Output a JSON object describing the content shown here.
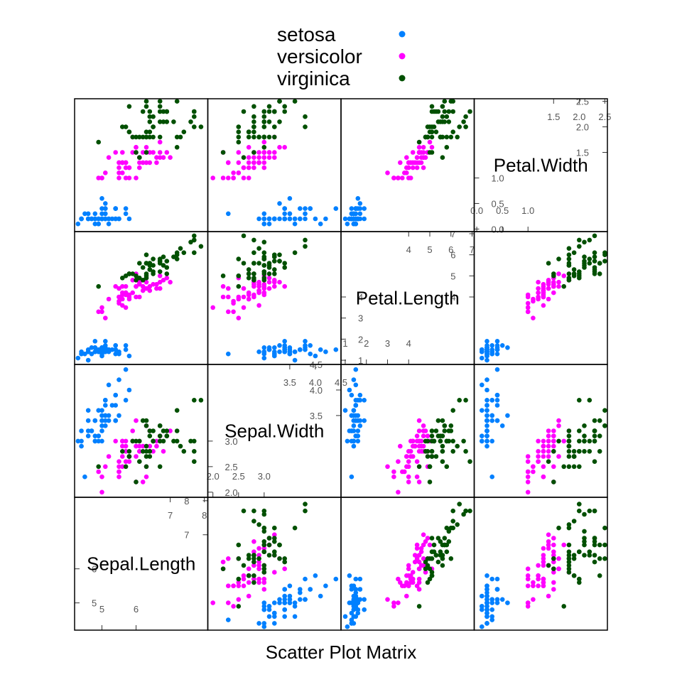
{
  "chart_data": {
    "type": "scatter",
    "subtype": "scatter-plot-matrix",
    "xlabel": "Scatter Plot Matrix",
    "legend_position": "top",
    "variables": [
      "Sepal.Length",
      "Sepal.Width",
      "Petal.Length",
      "Petal.Width"
    ],
    "ranges": {
      "Sepal.Length": [
        4.2,
        8.1
      ],
      "Sepal.Width": [
        1.9,
        4.5
      ],
      "Petal.Length": [
        0.8,
        7.1
      ],
      "Petal.Width": [
        -0.05,
        2.55
      ]
    },
    "ticks": {
      "Sepal.Length": {
        "low": [
          "5",
          "6"
        ],
        "high": [
          "7",
          "8"
        ]
      },
      "Sepal.Width": {
        "low": [
          "2.0",
          "2.5",
          "3.0"
        ],
        "high": [
          "3.5",
          "4.0",
          "4.5"
        ]
      },
      "Petal.Length": {
        "low": [
          "1",
          "2",
          "3",
          "4"
        ],
        "high": [
          "4",
          "5",
          "6",
          "7"
        ]
      },
      "Petal.Width": {
        "low": [
          "0.0",
          "0.5",
          "1.0"
        ],
        "high": [
          "1.5",
          "2.0",
          "2.5"
        ]
      }
    },
    "series": [
      {
        "name": "setosa",
        "color": "#0080ff",
        "points": [
          [
            5.1,
            3.5,
            1.4,
            0.2
          ],
          [
            4.9,
            3.0,
            1.4,
            0.2
          ],
          [
            4.7,
            3.2,
            1.3,
            0.2
          ],
          [
            4.6,
            3.1,
            1.5,
            0.2
          ],
          [
            5.0,
            3.6,
            1.4,
            0.2
          ],
          [
            5.4,
            3.9,
            1.7,
            0.4
          ],
          [
            4.6,
            3.4,
            1.4,
            0.3
          ],
          [
            5.0,
            3.4,
            1.5,
            0.2
          ],
          [
            4.4,
            2.9,
            1.4,
            0.2
          ],
          [
            4.9,
            3.1,
            1.5,
            0.1
          ],
          [
            5.4,
            3.7,
            1.5,
            0.2
          ],
          [
            4.8,
            3.4,
            1.6,
            0.2
          ],
          [
            4.8,
            3.0,
            1.4,
            0.1
          ],
          [
            4.3,
            3.0,
            1.1,
            0.1
          ],
          [
            5.8,
            4.0,
            1.2,
            0.2
          ],
          [
            5.7,
            4.4,
            1.5,
            0.4
          ],
          [
            5.4,
            3.9,
            1.3,
            0.4
          ],
          [
            5.1,
            3.5,
            1.4,
            0.3
          ],
          [
            5.7,
            3.8,
            1.7,
            0.3
          ],
          [
            5.1,
            3.8,
            1.5,
            0.3
          ],
          [
            5.4,
            3.4,
            1.7,
            0.2
          ],
          [
            5.1,
            3.7,
            1.5,
            0.4
          ],
          [
            4.6,
            3.6,
            1.0,
            0.2
          ],
          [
            5.1,
            3.3,
            1.7,
            0.5
          ],
          [
            4.8,
            3.4,
            1.9,
            0.2
          ],
          [
            5.0,
            3.0,
            1.6,
            0.2
          ],
          [
            5.0,
            3.4,
            1.6,
            0.4
          ],
          [
            5.2,
            3.5,
            1.5,
            0.2
          ],
          [
            5.2,
            3.4,
            1.4,
            0.2
          ],
          [
            4.7,
            3.2,
            1.6,
            0.2
          ],
          [
            4.8,
            3.1,
            1.6,
            0.2
          ],
          [
            5.4,
            3.4,
            1.5,
            0.4
          ],
          [
            5.2,
            4.1,
            1.5,
            0.1
          ],
          [
            5.5,
            4.2,
            1.4,
            0.2
          ],
          [
            4.9,
            3.1,
            1.5,
            0.2
          ],
          [
            5.0,
            3.2,
            1.2,
            0.2
          ],
          [
            5.5,
            3.5,
            1.3,
            0.2
          ],
          [
            4.9,
            3.6,
            1.4,
            0.1
          ],
          [
            4.4,
            3.0,
            1.3,
            0.2
          ],
          [
            5.1,
            3.4,
            1.5,
            0.2
          ],
          [
            5.0,
            3.5,
            1.3,
            0.3
          ],
          [
            4.5,
            2.3,
            1.3,
            0.3
          ],
          [
            4.4,
            3.2,
            1.3,
            0.2
          ],
          [
            5.0,
            3.5,
            1.6,
            0.6
          ],
          [
            5.1,
            3.8,
            1.9,
            0.4
          ],
          [
            4.8,
            3.0,
            1.4,
            0.3
          ],
          [
            5.1,
            3.8,
            1.6,
            0.2
          ],
          [
            4.6,
            3.2,
            1.4,
            0.2
          ],
          [
            5.3,
            3.7,
            1.5,
            0.2
          ],
          [
            5.0,
            3.3,
            1.4,
            0.2
          ]
        ]
      },
      {
        "name": "versicolor",
        "color": "#ff00ff",
        "points": [
          [
            7.0,
            3.2,
            4.7,
            1.4
          ],
          [
            6.4,
            3.2,
            4.5,
            1.5
          ],
          [
            6.9,
            3.1,
            4.9,
            1.5
          ],
          [
            5.5,
            2.3,
            4.0,
            1.3
          ],
          [
            6.5,
            2.8,
            4.6,
            1.5
          ],
          [
            5.7,
            2.8,
            4.5,
            1.3
          ],
          [
            6.3,
            3.3,
            4.7,
            1.6
          ],
          [
            4.9,
            2.4,
            3.3,
            1.0
          ],
          [
            6.6,
            2.9,
            4.6,
            1.3
          ],
          [
            5.2,
            2.7,
            3.9,
            1.4
          ],
          [
            5.0,
            2.0,
            3.5,
            1.0
          ],
          [
            5.9,
            3.0,
            4.2,
            1.5
          ],
          [
            6.0,
            2.2,
            4.0,
            1.0
          ],
          [
            6.1,
            2.9,
            4.7,
            1.4
          ],
          [
            5.6,
            2.9,
            3.6,
            1.3
          ],
          [
            6.7,
            3.1,
            4.4,
            1.4
          ],
          [
            5.6,
            3.0,
            4.5,
            1.5
          ],
          [
            5.8,
            2.7,
            4.1,
            1.0
          ],
          [
            6.2,
            2.2,
            4.5,
            1.5
          ],
          [
            5.6,
            2.5,
            3.9,
            1.1
          ],
          [
            5.9,
            3.2,
            4.8,
            1.8
          ],
          [
            6.1,
            2.8,
            4.0,
            1.3
          ],
          [
            6.3,
            2.5,
            4.9,
            1.5
          ],
          [
            6.1,
            2.8,
            4.7,
            1.2
          ],
          [
            6.4,
            2.9,
            4.3,
            1.3
          ],
          [
            6.6,
            3.0,
            4.4,
            1.4
          ],
          [
            6.8,
            2.8,
            4.8,
            1.4
          ],
          [
            6.7,
            3.0,
            5.0,
            1.7
          ],
          [
            6.0,
            2.9,
            4.5,
            1.5
          ],
          [
            5.7,
            2.6,
            3.5,
            1.0
          ],
          [
            5.5,
            2.4,
            3.8,
            1.1
          ],
          [
            5.5,
            2.4,
            3.7,
            1.0
          ],
          [
            5.8,
            2.7,
            3.9,
            1.2
          ],
          [
            6.0,
            2.7,
            5.1,
            1.6
          ],
          [
            5.4,
            3.0,
            4.5,
            1.5
          ],
          [
            6.0,
            3.4,
            4.5,
            1.6
          ],
          [
            6.7,
            3.1,
            4.7,
            1.5
          ],
          [
            6.3,
            2.3,
            4.4,
            1.3
          ],
          [
            5.6,
            3.0,
            4.1,
            1.3
          ],
          [
            5.5,
            2.5,
            4.0,
            1.3
          ],
          [
            5.5,
            2.6,
            4.4,
            1.2
          ],
          [
            6.1,
            3.0,
            4.6,
            1.4
          ],
          [
            5.8,
            2.6,
            4.0,
            1.2
          ],
          [
            5.0,
            2.3,
            3.3,
            1.0
          ],
          [
            5.6,
            2.7,
            4.2,
            1.3
          ],
          [
            5.7,
            3.0,
            4.2,
            1.2
          ],
          [
            5.7,
            2.9,
            4.2,
            1.3
          ],
          [
            6.2,
            2.9,
            4.3,
            1.3
          ],
          [
            5.1,
            2.5,
            3.0,
            1.1
          ],
          [
            5.7,
            2.8,
            4.1,
            1.3
          ]
        ]
      },
      {
        "name": "virginica",
        "color": "#005000",
        "points": [
          [
            6.3,
            3.3,
            6.0,
            2.5
          ],
          [
            5.8,
            2.7,
            5.1,
            1.9
          ],
          [
            7.1,
            3.0,
            5.9,
            2.1
          ],
          [
            6.3,
            2.9,
            5.6,
            1.8
          ],
          [
            6.5,
            3.0,
            5.8,
            2.2
          ],
          [
            7.6,
            3.0,
            6.6,
            2.1
          ],
          [
            4.9,
            2.5,
            4.5,
            1.7
          ],
          [
            7.3,
            2.9,
            6.3,
            1.8
          ],
          [
            6.7,
            2.5,
            5.8,
            1.8
          ],
          [
            7.2,
            3.6,
            6.1,
            2.5
          ],
          [
            6.5,
            3.2,
            5.1,
            2.0
          ],
          [
            6.4,
            2.7,
            5.3,
            1.9
          ],
          [
            6.8,
            3.0,
            5.5,
            2.1
          ],
          [
            5.7,
            2.5,
            5.0,
            2.0
          ],
          [
            5.8,
            2.8,
            5.1,
            2.4
          ],
          [
            6.4,
            3.2,
            5.3,
            2.3
          ],
          [
            6.5,
            3.0,
            5.5,
            1.8
          ],
          [
            7.7,
            3.8,
            6.7,
            2.2
          ],
          [
            7.7,
            2.6,
            6.9,
            2.3
          ],
          [
            6.0,
            2.2,
            5.0,
            1.5
          ],
          [
            6.9,
            3.2,
            5.7,
            2.3
          ],
          [
            5.6,
            2.8,
            4.9,
            2.0
          ],
          [
            7.7,
            2.8,
            6.7,
            2.0
          ],
          [
            6.3,
            2.7,
            4.9,
            1.8
          ],
          [
            6.7,
            3.3,
            5.7,
            2.1
          ],
          [
            7.2,
            3.2,
            6.0,
            1.8
          ],
          [
            6.2,
            2.8,
            4.8,
            1.8
          ],
          [
            6.1,
            3.0,
            4.9,
            1.8
          ],
          [
            6.4,
            2.8,
            5.6,
            2.1
          ],
          [
            7.2,
            3.0,
            5.8,
            1.6
          ],
          [
            7.4,
            2.8,
            6.1,
            1.9
          ],
          [
            7.9,
            3.8,
            6.4,
            2.0
          ],
          [
            6.4,
            2.8,
            5.6,
            2.2
          ],
          [
            6.3,
            2.8,
            5.1,
            1.5
          ],
          [
            6.1,
            2.6,
            5.6,
            1.4
          ],
          [
            7.7,
            3.0,
            6.1,
            2.3
          ],
          [
            6.3,
            3.4,
            5.6,
            2.4
          ],
          [
            6.4,
            3.1,
            5.5,
            1.8
          ],
          [
            6.0,
            3.0,
            4.8,
            1.8
          ],
          [
            6.9,
            3.1,
            5.4,
            2.1
          ],
          [
            6.7,
            3.1,
            5.6,
            2.4
          ],
          [
            6.9,
            3.1,
            5.1,
            2.3
          ],
          [
            5.8,
            2.7,
            5.1,
            1.9
          ],
          [
            6.8,
            3.2,
            5.9,
            2.3
          ],
          [
            6.7,
            3.3,
            5.7,
            2.5
          ],
          [
            6.7,
            3.0,
            5.2,
            2.3
          ],
          [
            6.3,
            2.5,
            5.0,
            1.9
          ],
          [
            6.5,
            3.0,
            5.2,
            2.0
          ],
          [
            6.2,
            3.4,
            5.4,
            2.3
          ],
          [
            5.9,
            3.0,
            5.1,
            1.8
          ]
        ]
      }
    ]
  }
}
